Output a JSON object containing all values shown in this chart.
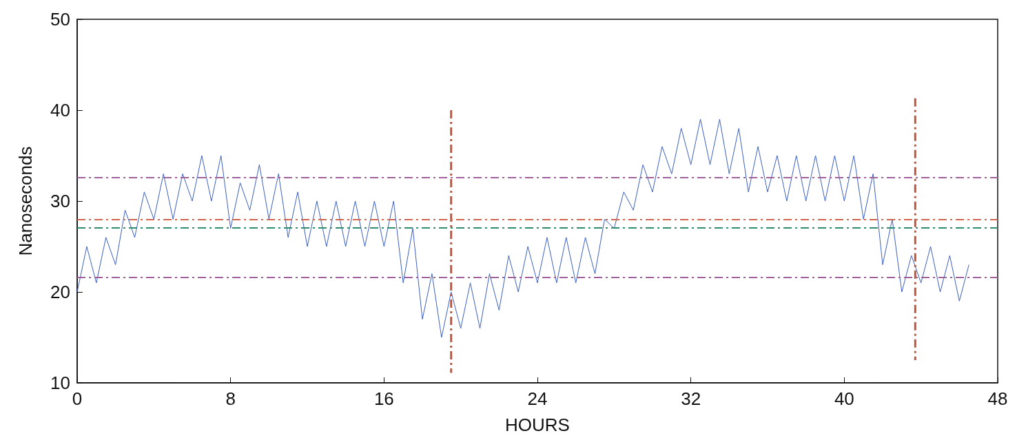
{
  "chart_data": {
    "type": "line",
    "xlabel": "HOURS",
    "ylabel": "Nanoseconds",
    "xlim": [
      0,
      48
    ],
    "xticks": [
      0,
      8,
      16,
      24,
      32,
      40,
      48
    ],
    "ylim": [
      10,
      50
    ],
    "yticks": [
      10,
      20,
      30,
      40,
      50
    ],
    "grid": false,
    "marker": "none",
    "series": [
      {
        "color": "#3b5fc6",
        "line_style": "solid",
        "x": [
          0,
          0.5,
          1,
          1.5,
          2,
          2.5,
          3,
          3.5,
          4,
          4.5,
          5,
          5.5,
          6,
          6.5,
          7,
          7.5,
          8,
          8.5,
          9,
          9.5,
          10,
          10.5,
          11,
          11.5,
          12,
          12.5,
          13,
          13.5,
          14,
          14.5,
          15,
          15.5,
          16,
          16.5,
          17,
          17.5,
          18,
          18.5,
          19,
          19.5,
          20,
          20.5,
          21,
          21.5,
          22,
          22.5,
          23,
          23.5,
          24,
          24.5,
          25,
          25.5,
          26,
          26.5,
          27,
          27.5,
          28,
          28.5,
          29,
          29.5,
          30,
          30.5,
          31,
          31.5,
          32,
          32.5,
          33,
          33.5,
          34,
          34.5,
          35,
          35.5,
          36,
          36.5,
          37,
          37.5,
          38,
          38.5,
          39,
          39.5,
          40,
          40.5,
          41,
          41.5,
          42,
          42.5,
          43,
          43.5,
          44,
          44.5,
          45,
          45.5,
          46,
          46.5
        ],
        "values": [
          20,
          25,
          21,
          26,
          23,
          29,
          26,
          31,
          28,
          33,
          28,
          33,
          30,
          35,
          30,
          35,
          27,
          32,
          29,
          34,
          28,
          33,
          26,
          31,
          25,
          30,
          25,
          30,
          25,
          30,
          25,
          30,
          25,
          30,
          21,
          27,
          17,
          22,
          15,
          20,
          16,
          21,
          16,
          22,
          18,
          24,
          20,
          25,
          21,
          26,
          21,
          26,
          21,
          26,
          22,
          28,
          27,
          31,
          29,
          34,
          31,
          36,
          33,
          38,
          34,
          39,
          34,
          39,
          33,
          38,
          31,
          36,
          31,
          35,
          30,
          35,
          30,
          35,
          30,
          35,
          30,
          35,
          28,
          33,
          23,
          28,
          20,
          24,
          21,
          25,
          20,
          24,
          19,
          23
        ]
      },
      {
        "color": "#c0553e",
        "line_style": "dashed",
        "x": [
          19.5,
          19.5
        ],
        "values": [
          40,
          11.1
        ]
      },
      {
        "color": "#c0553e",
        "line_style": "dashed",
        "x": [
          43.7,
          43.7
        ],
        "values": [
          41.3,
          12.5
        ]
      }
    ],
    "ref_lines": [
      {
        "axis": "y",
        "value": 32.6,
        "color": "#a0609c",
        "line_style": "dashed"
      },
      {
        "axis": "y",
        "value": 28,
        "color": "#d0644c",
        "line_style": "dashed"
      },
      {
        "axis": "y",
        "value": 27.1,
        "color": "#2e8c6e",
        "line_style": "dashed"
      },
      {
        "axis": "y",
        "value": 21.6,
        "color": "#a0609c",
        "line_style": "dashed"
      }
    ]
  }
}
